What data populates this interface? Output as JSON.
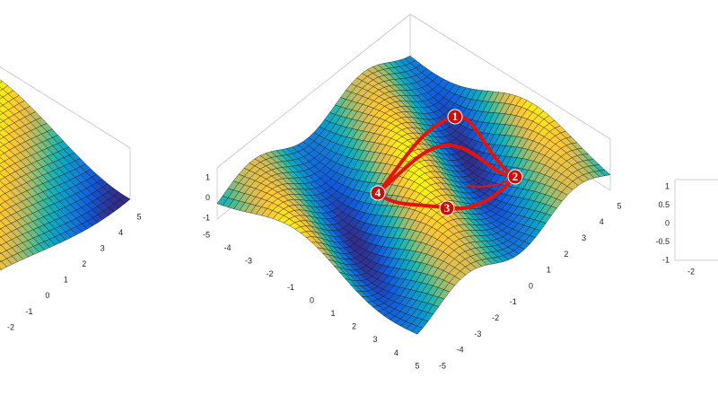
{
  "left_panel": {
    "right_axis_ticks": [
      5,
      4,
      3,
      2,
      1,
      0,
      -1,
      -2
    ]
  },
  "center_panel": {
    "z_ticks": [
      1,
      0,
      -1
    ],
    "left_axis_ticks": [
      -5,
      -4,
      -3,
      -2,
      -1,
      0,
      1,
      2,
      3,
      4,
      5
    ],
    "right_axis_ticks": [
      -5,
      -4,
      -3,
      -2,
      -1,
      0,
      1,
      2,
      3,
      4,
      5
    ],
    "markers": [
      {
        "label": "1"
      },
      {
        "label": "2"
      },
      {
        "label": "3"
      },
      {
        "label": "4"
      }
    ]
  },
  "right_panel": {
    "z_ticks": [
      1,
      0.5,
      0,
      -0.5,
      -1
    ],
    "axis_tick": -2
  }
}
